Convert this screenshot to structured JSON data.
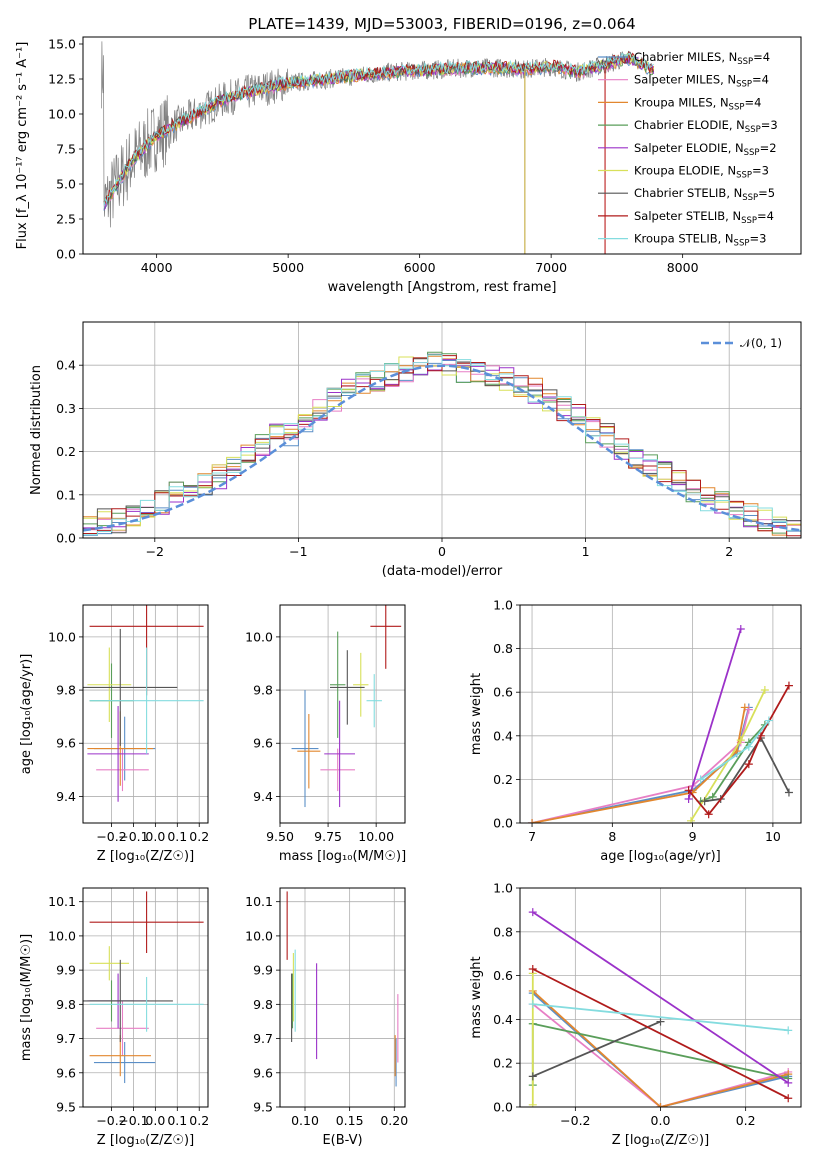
{
  "figure": {
    "title": "PLATE=1439, MJD=53003, FIBERID=0196, z=0.064"
  },
  "legend_entries": [
    {
      "label": "Chabrier MILES, N",
      "n": "4",
      "color": "#5b8fc7"
    },
    {
      "label": "Salpeter MILES, N",
      "n": "4",
      "color": "#e77fc5"
    },
    {
      "label": "Kroupa MILES, N",
      "n": "4",
      "color": "#e2872f"
    },
    {
      "label": "Chabrier ELODIE, N",
      "n": "3",
      "color": "#5a9e5a"
    },
    {
      "label": "Salpeter ELODIE, N",
      "n": "2",
      "color": "#9b32c9"
    },
    {
      "label": "Kroupa ELODIE, N",
      "n": "3",
      "color": "#d8e05a"
    },
    {
      "label": "Chabrier STELIB, N",
      "n": "5",
      "color": "#555555"
    },
    {
      "label": "Salpeter STELIB, N",
      "n": "4",
      "color": "#b01b1b"
    },
    {
      "label": "Kroupa STELIB, N",
      "n": "3",
      "color": "#84dcdf"
    }
  ],
  "legend_subscript": "SSP",
  "chart_data": [
    {
      "id": "spectrum",
      "type": "line",
      "xlabel": "wavelength [Angstrom, rest frame]",
      "ylabel": "Flux [f_λ 10⁻¹⁷ erg cm⁻² s⁻¹ A⁻¹]",
      "xlim": [
        3440,
        8900
      ],
      "ylim": [
        0,
        15.5
      ],
      "xticks": [
        "4000",
        "5000",
        "6000",
        "7000",
        "8000"
      ],
      "yticks": [
        "0.0",
        "2.5",
        "5.0",
        "7.5",
        "10.0",
        "12.5",
        "15.0"
      ],
      "x": [
        3600,
        3700,
        3800,
        3900,
        4000,
        4100,
        4200,
        4300,
        4400,
        4500,
        4600,
        4800,
        5000,
        5200,
        5400,
        5600,
        5800,
        6000,
        6200,
        6400,
        6600,
        6800,
        7000,
        7200,
        7400,
        7600,
        7800
      ],
      "y": [
        3.5,
        5.0,
        6.5,
        7.5,
        8.5,
        9.0,
        9.5,
        10.0,
        10.5,
        11.0,
        11.3,
        11.8,
        12.2,
        12.4,
        12.6,
        12.8,
        13.0,
        13.1,
        13.2,
        13.3,
        13.3,
        13.2,
        13.4,
        13.0,
        13.5,
        14.0,
        13.0
      ]
    },
    {
      "id": "residuals",
      "type": "bar",
      "xlabel": "(data-model)/error",
      "ylabel": "Normed distribution",
      "xlim": [
        -2.5,
        2.5
      ],
      "ylim": [
        0,
        0.5
      ],
      "xticks": [
        "−2",
        "−1",
        "0",
        "1",
        "2"
      ],
      "yticks": [
        "0.0",
        "0.1",
        "0.2",
        "0.3",
        "0.4"
      ],
      "bin_width": 0.1,
      "values": [
        0.03,
        0.04,
        0.04,
        0.05,
        0.06,
        0.08,
        0.1,
        0.12,
        0.12,
        0.14,
        0.17,
        0.19,
        0.21,
        0.24,
        0.24,
        0.27,
        0.3,
        0.32,
        0.35,
        0.36,
        0.36,
        0.38,
        0.39,
        0.4,
        0.41,
        0.4,
        0.39,
        0.39,
        0.38,
        0.37,
        0.35,
        0.34,
        0.32,
        0.3,
        0.28,
        0.25,
        0.24,
        0.21,
        0.19,
        0.17,
        0.15,
        0.13,
        0.11,
        0.09,
        0.08,
        0.07,
        0.05,
        0.04,
        0.03,
        0.02
      ],
      "reference": {
        "name": "𝒩(0, 1)"
      }
    },
    {
      "id": "z-vs-age",
      "type": "scatter",
      "xlabel": "Z [log₁₀(Z/Z☉)]",
      "ylabel": "age  [log₁₀(age/yr)]",
      "xlim": [
        -0.33,
        0.24
      ],
      "ylim": [
        9.3,
        10.12
      ],
      "xticks": [
        "−0.2",
        "−0.1",
        "0.0",
        "0.1",
        "0.2"
      ],
      "yticks": [
        "9.4",
        "9.6",
        "9.8",
        "10.0"
      ],
      "points": [
        {
          "x": -0.14,
          "xerr": 0.14,
          "y": 9.58,
          "yerr": 0.12
        },
        {
          "x": -0.15,
          "xerr": 0.12,
          "y": 9.5,
          "yerr": 0.08
        },
        {
          "x": -0.16,
          "xerr": 0.15,
          "y": 9.58,
          "yerr": 0.14
        },
        {
          "x": -0.2,
          "xerr": 0.1,
          "y": 9.76,
          "yerr": 0.14
        },
        {
          "x": -0.17,
          "xerr": 0.14,
          "y": 9.56,
          "yerr": 0.18
        },
        {
          "x": -0.21,
          "xerr": 0.1,
          "y": 9.82,
          "yerr": 0.14
        },
        {
          "x": -0.16,
          "xerr": 0.26,
          "y": 9.81,
          "yerr": 0.22
        },
        {
          "x": -0.04,
          "xerr": 0.26,
          "y": 10.04,
          "yerr": 0.26
        },
        {
          "x": -0.04,
          "xerr": 0.26,
          "y": 9.76,
          "yerr": 0.2
        }
      ]
    },
    {
      "id": "mass-vs-age",
      "type": "scatter",
      "xlabel": "mass [log₁₀(M/M☉)]",
      "ylabel": "",
      "xlim": [
        9.5,
        10.15
      ],
      "ylim": [
        9.3,
        10.12
      ],
      "xticks": [
        "9.50",
        "9.75",
        "10.00"
      ],
      "yticks": [
        "9.4",
        "9.6",
        "9.8",
        "10.0"
      ],
      "points": [
        {
          "x": 9.63,
          "xerr": 0.07,
          "y": 9.58,
          "yerr": 0.22
        },
        {
          "x": 9.8,
          "xerr": 0.09,
          "y": 9.5,
          "yerr": 0.08
        },
        {
          "x": 9.65,
          "xerr": 0.06,
          "y": 9.57,
          "yerr": 0.14
        },
        {
          "x": 9.8,
          "xerr": 0.04,
          "y": 9.82,
          "yerr": 0.2
        },
        {
          "x": 9.81,
          "xerr": 0.08,
          "y": 9.56,
          "yerr": 0.2
        },
        {
          "x": 9.92,
          "xerr": 0.04,
          "y": 9.82,
          "yerr": 0.12
        },
        {
          "x": 9.85,
          "xerr": 0.09,
          "y": 9.81,
          "yerr": 0.14
        },
        {
          "x": 10.05,
          "xerr": 0.08,
          "y": 10.04,
          "yerr": 0.16
        },
        {
          "x": 9.99,
          "xerr": 0.04,
          "y": 9.76,
          "yerr": 0.1
        }
      ]
    },
    {
      "id": "age-vs-weight",
      "type": "line",
      "xlabel": "age  [log₁₀(age/yr)]",
      "ylabel": "mass weight",
      "xlim": [
        6.85,
        10.35
      ],
      "ylim": [
        0,
        1.0
      ],
      "xticks": [
        "7",
        "8",
        "9",
        "10"
      ],
      "yticks": [
        "0.0",
        "0.2",
        "0.4",
        "0.6",
        "0.8",
        "1.0"
      ],
      "series": [
        {
          "x": [
            7.0,
            9.0,
            9.55,
            9.7
          ],
          "y": [
            0.0,
            0.15,
            0.32,
            0.53
          ]
        },
        {
          "x": [
            7.0,
            9.0,
            9.6,
            9.7
          ],
          "y": [
            0.0,
            0.17,
            0.37,
            0.52
          ]
        },
        {
          "x": [
            7.0,
            9.0,
            9.55,
            9.65
          ],
          "y": [
            0.0,
            0.14,
            0.33,
            0.53
          ]
        },
        {
          "x": [
            9.1,
            9.25,
            9.7,
            9.9
          ],
          "y": [
            0.1,
            0.12,
            0.37,
            0.45
          ]
        },
        {
          "x": [
            8.95,
            9.6
          ],
          "y": [
            0.11,
            0.89
          ]
        },
        {
          "x": [
            8.98,
            9.6,
            9.9
          ],
          "y": [
            0.01,
            0.38,
            0.61
          ]
        },
        {
          "x": [
            9.15,
            9.35,
            9.85,
            10.2
          ],
          "y": [
            0.1,
            0.11,
            0.39,
            0.14
          ]
        },
        {
          "x": [
            8.95,
            9.2,
            9.7,
            9.85,
            10.2
          ],
          "y": [
            0.15,
            0.04,
            0.27,
            0.4,
            0.63
          ]
        },
        {
          "x": [
            9.1,
            9.7,
            9.95
          ],
          "y": [
            0.2,
            0.35,
            0.47
          ]
        }
      ]
    },
    {
      "id": "z-vs-mass",
      "type": "scatter",
      "xlabel": "Z [log₁₀(Z/Z☉)]",
      "ylabel": "mass [log₁₀(M/M☉)]",
      "xlim": [
        -0.33,
        0.24
      ],
      "ylim": [
        9.5,
        10.14
      ],
      "xticks": [
        "−0.2",
        "−0.1",
        "0.0",
        "0.1",
        "0.2"
      ],
      "yticks": [
        "9.5",
        "9.6",
        "9.7",
        "9.8",
        "9.9",
        "10.0",
        "10.1"
      ],
      "points": [
        {
          "x": -0.14,
          "xerr": 0.14,
          "y": 9.63,
          "yerr": 0.06
        },
        {
          "x": -0.15,
          "xerr": 0.12,
          "y": 9.73,
          "yerr": 0.08
        },
        {
          "x": -0.16,
          "xerr": 0.14,
          "y": 9.65,
          "yerr": 0.06
        },
        {
          "x": -0.2,
          "xerr": 0.1,
          "y": 9.81,
          "yerr": 0.06
        },
        {
          "x": -0.17,
          "xerr": 0.14,
          "y": 9.81,
          "yerr": 0.08
        },
        {
          "x": -0.21,
          "xerr": 0.09,
          "y": 9.92,
          "yerr": 0.05
        },
        {
          "x": -0.16,
          "xerr": 0.24,
          "y": 9.81,
          "yerr": 0.12
        },
        {
          "x": -0.04,
          "xerr": 0.26,
          "y": 10.04,
          "yerr": 0.09
        },
        {
          "x": -0.04,
          "xerr": 0.26,
          "y": 9.8,
          "yerr": 0.08
        }
      ]
    },
    {
      "id": "ebv-vs-mass",
      "type": "scatter",
      "xlabel": "E(B-V)",
      "ylabel": "",
      "xlim": [
        0.072,
        0.212
      ],
      "ylim": [
        9.5,
        10.14
      ],
      "xticks": [
        "0.10",
        "0.15",
        "0.20"
      ],
      "yticks": [
        "9.5",
        "9.6",
        "9.7",
        "9.8",
        "9.9",
        "10.0",
        "10.1"
      ],
      "points": [
        {
          "x": 0.202,
          "y": 9.63,
          "yerr": 0.07
        },
        {
          "x": 0.204,
          "y": 9.73,
          "yerr": 0.1
        },
        {
          "x": 0.201,
          "y": 9.65,
          "yerr": 0.06
        },
        {
          "x": 0.086,
          "y": 9.81,
          "yerr": 0.08
        },
        {
          "x": 0.113,
          "y": 9.78,
          "yerr": 0.14
        },
        {
          "x": 0.087,
          "y": 9.85,
          "yerr": 0.1
        },
        {
          "x": 0.085,
          "y": 9.79,
          "yerr": 0.1
        },
        {
          "x": 0.08,
          "y": 10.03,
          "yerr": 0.1
        },
        {
          "x": 0.089,
          "y": 9.84,
          "yerr": 0.12
        }
      ]
    },
    {
      "id": "z-vs-weight",
      "type": "line",
      "xlabel": "Z [log₁₀(Z/Z☉)]",
      "ylabel": "mass weight",
      "xlim": [
        -0.33,
        0.33
      ],
      "ylim": [
        0,
        1.0
      ],
      "xticks": [
        "−0.2",
        "0.0",
        "0.2"
      ],
      "yticks": [
        "0.0",
        "0.2",
        "0.4",
        "0.6",
        "0.8",
        "1.0"
      ],
      "series": [
        {
          "x": [
            -0.3,
            0.0,
            0.3
          ],
          "y": [
            0.52,
            0.0,
            0.14
          ]
        },
        {
          "x": [
            -0.3,
            0.0,
            0.3
          ],
          "y": [
            0.47,
            0.0,
            0.16
          ]
        },
        {
          "x": [
            -0.3,
            0.0,
            0.3
          ],
          "y": [
            0.53,
            0.0,
            0.15
          ]
        },
        {
          "x": [
            -0.3,
            -0.3,
            0.3
          ],
          "y": [
            0.1,
            0.38,
            0.13
          ]
        },
        {
          "x": [
            -0.3,
            0.3
          ],
          "y": [
            0.89,
            0.11
          ]
        },
        {
          "x": [
            -0.3,
            -0.3
          ],
          "y": [
            0.01,
            0.61
          ]
        },
        {
          "x": [
            -0.3,
            0.0
          ],
          "y": [
            0.14,
            0.39
          ]
        },
        {
          "x": [
            -0.3,
            0.3
          ],
          "y": [
            0.63,
            0.04
          ]
        },
        {
          "x": [
            -0.3,
            0.3
          ],
          "y": [
            0.47,
            0.35
          ]
        }
      ]
    }
  ]
}
